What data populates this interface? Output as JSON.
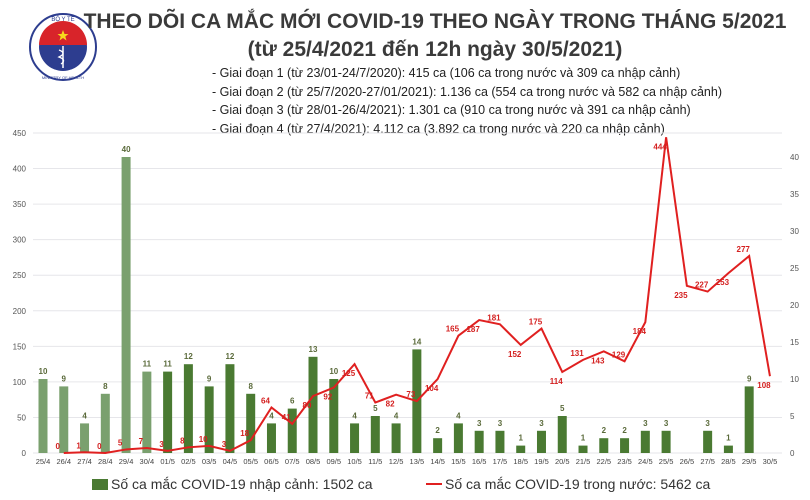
{
  "logo": {
    "top_text": "BỘ Y TẾ",
    "bottom_text": "MINISTRY OF HEALTH"
  },
  "title": "THEO DÕI CA MẮC MỚI COVID-19 THEO NGÀY TRONG THÁNG 5/2021",
  "subtitle": "(từ 25/4/2021 đến 12h ngày 30/5/2021)",
  "notes": [
    "- Giai đoạn 1 (từ 23/01-24/7/2020): 415 ca (106 ca trong nước và 309 ca nhập cảnh)",
    "- Giai đoạn 2 (từ 25/7/2020-27/01/2021): 1.136 ca (554 ca trong nước và 582 ca nhập cảnh)",
    "- Giai đoạn 3 (từ 28/01-26/4/2021): 1.301 ca (910 ca trong nước và 391 ca nhập cảnh)",
    "- Giai đoạn 4 (từ 27/4/2021): 4.112 ca (3.892 ca trong nước và 220 ca nhập cảnh)"
  ],
  "chart_data": {
    "type": "bar+line",
    "categories": [
      "25/4",
      "26/4",
      "27/4",
      "28/4",
      "29/4",
      "30/4",
      "01/5",
      "02/5",
      "03/5",
      "04/5",
      "05/5",
      "06/5",
      "07/5",
      "08/5",
      "09/5",
      "10/5",
      "11/5",
      "12/5",
      "13/5",
      "14/5",
      "15/5",
      "16/5",
      "17/5",
      "18/5",
      "19/5",
      "20/5",
      "21/5",
      "22/5",
      "23/5",
      "24/5",
      "25/5",
      "26/5",
      "27/5",
      "28/5",
      "29/5",
      "30/5"
    ],
    "series": [
      {
        "name": "Số ca mắc COVID-19 nhập cảnh: 1502 ca",
        "type": "bar",
        "axis": "right",
        "color": "#4a7a32",
        "color_april": "#7aa06e",
        "values": [
          10,
          9,
          4,
          8,
          40,
          11,
          11,
          12,
          9,
          12,
          8,
          4,
          6,
          13,
          10,
          4,
          5,
          4,
          14,
          2,
          4,
          3,
          3,
          1,
          3,
          5,
          1,
          2,
          2,
          3,
          3,
          null,
          3,
          1,
          9,
          null
        ]
      },
      {
        "name": "Số ca mắc COVID-19 trong nước: 5462 ca",
        "type": "line",
        "axis": "left",
        "color": "#e02020",
        "values": [
          null,
          0,
          1,
          0,
          5,
          7,
          3,
          8,
          10,
          3,
          18,
          64,
          41,
          80,
          92,
          125,
          71,
          82,
          73,
          104,
          165,
          187,
          181,
          152,
          175,
          114,
          131,
          143,
          129,
          184,
          444,
          235,
          227,
          253,
          277,
          108
        ]
      }
    ],
    "left_axis": {
      "range": [
        0,
        450
      ],
      "ticks": [
        "0",
        "50",
        "100",
        "150",
        "200",
        "250",
        "300",
        "350",
        "400",
        "450"
      ]
    },
    "right_axis": {
      "range": [
        0,
        45
      ],
      "ticks": [
        "0",
        "5",
        "10",
        "15",
        "20",
        "25",
        "30",
        "35",
        "40"
      ]
    },
    "grid": true,
    "legend": "bottom"
  }
}
